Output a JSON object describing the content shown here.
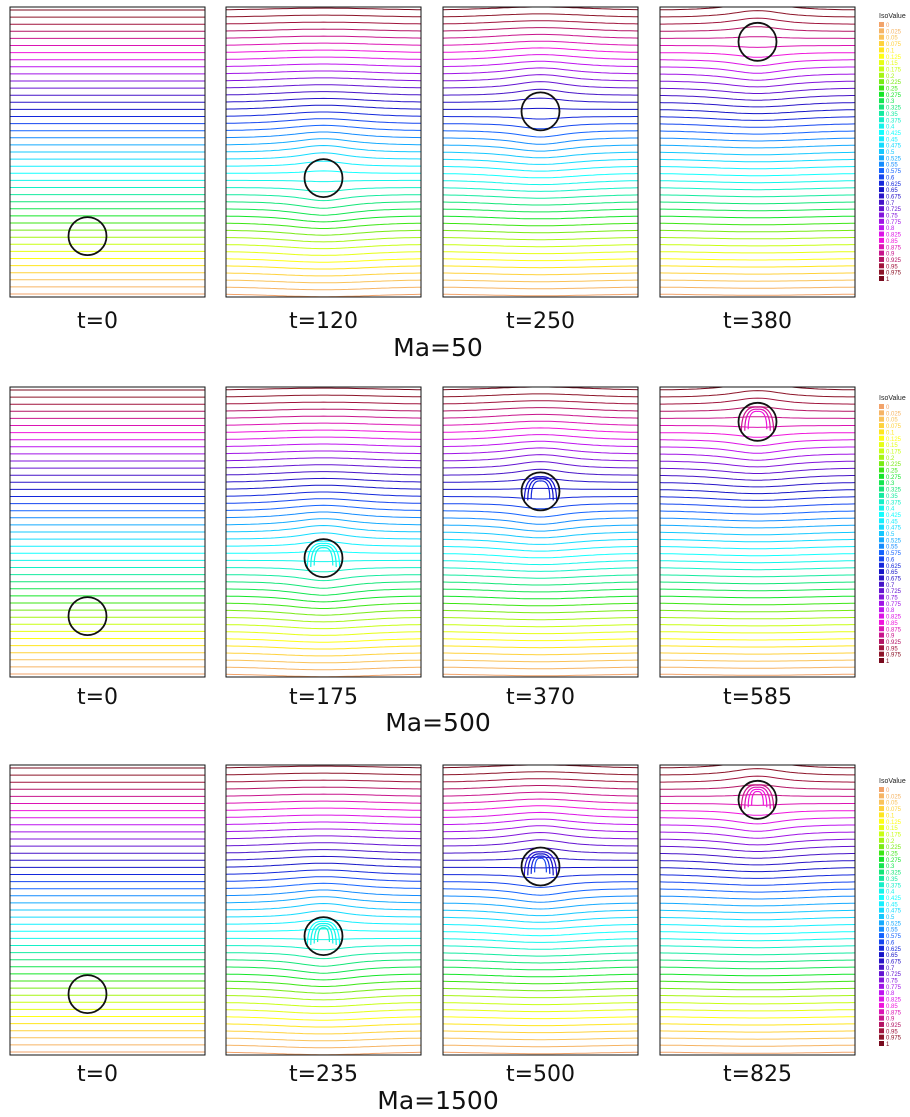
{
  "figure": {
    "rows": [
      {
        "label": "Ma=50",
        "panels": [
          {
            "time_label": "t=0",
            "bubble_pos": 0.79,
            "deform": 0
          },
          {
            "time_label": "t=120",
            "bubble_pos": 0.59,
            "deform": 0
          },
          {
            "time_label": "t=250",
            "bubble_pos": 0.36,
            "deform": 0
          },
          {
            "time_label": "t=380",
            "bubble_pos": 0.12,
            "deform": 0
          }
        ]
      },
      {
        "label": "Ma=500",
        "panels": [
          {
            "time_label": "t=0",
            "bubble_pos": 0.79,
            "deform": 0
          },
          {
            "time_label": "t=175",
            "bubble_pos": 0.59,
            "deform": 1
          },
          {
            "time_label": "t=370",
            "bubble_pos": 0.36,
            "deform": 1
          },
          {
            "time_label": "t=585",
            "bubble_pos": 0.12,
            "deform": 1
          }
        ]
      },
      {
        "label": "Ma=1500",
        "panels": [
          {
            "time_label": "t=0",
            "bubble_pos": 0.79,
            "deform": 0
          },
          {
            "time_label": "t=235",
            "bubble_pos": 0.59,
            "deform": 2
          },
          {
            "time_label": "t=500",
            "bubble_pos": 0.35,
            "deform": 2
          },
          {
            "time_label": "t=825",
            "bubble_pos": 0.12,
            "deform": 2
          }
        ]
      }
    ],
    "legend": {
      "title": "IsoValue",
      "values": [
        "0",
        "0.025",
        "0.05",
        "0.075",
        "0.1",
        "0.125",
        "0.15",
        "0.175",
        "0.2",
        "0.225",
        "0.25",
        "0.275",
        "0.3",
        "0.325",
        "0.35",
        "0.375",
        "0.4",
        "0.425",
        "0.45",
        "0.475",
        "0.5",
        "0.525",
        "0.55",
        "0.575",
        "0.6",
        "0.625",
        "0.65",
        "0.675",
        "0.7",
        "0.725",
        "0.75",
        "0.775",
        "0.8",
        "0.825",
        "0.85",
        "0.875",
        "0.9",
        "0.925",
        "0.95",
        "0.975",
        "1"
      ],
      "colors": [
        "#f2a36a",
        "#f6b464",
        "#fac35a",
        "#ffd23c",
        "#ffe61e",
        "#ffff14",
        "#e6ff14",
        "#c8ff14",
        "#a5f514",
        "#78eb14",
        "#3ce614",
        "#14e628",
        "#14e650",
        "#14e678",
        "#14eba0",
        "#14f0c8",
        "#14f5eb",
        "#14ffff",
        "#14f0ff",
        "#14dcff",
        "#14c8ff",
        "#14aaff",
        "#148cff",
        "#1464ff",
        "#1446f0",
        "#1428dc",
        "#1414c8",
        "#2814c8",
        "#4614c8",
        "#6414d2",
        "#8214dc",
        "#a014e6",
        "#be14f0",
        "#dc14e6",
        "#f014dc",
        "#dc14b4",
        "#c8148c",
        "#b41464",
        "#a0143c",
        "#8c1428",
        "#780a1e"
      ]
    }
  }
}
